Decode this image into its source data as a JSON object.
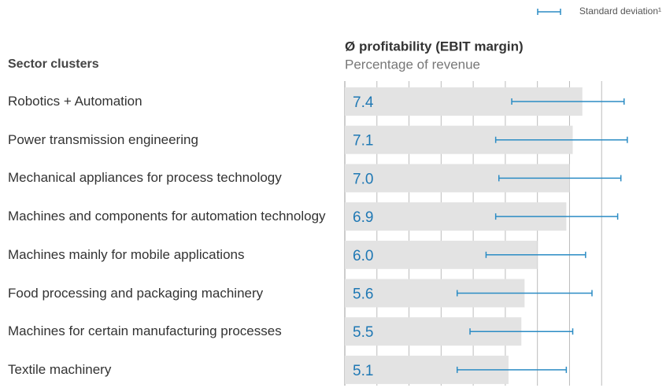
{
  "chart_data": {
    "type": "bar",
    "orientation": "horizontal",
    "title": "Ø profitability (EBIT margin)",
    "subtitle": "Percentage of revenue",
    "category_header": "Sector clusters",
    "legend": {
      "label": "Standard deviation¹",
      "position": "top-right"
    },
    "categories": [
      "Robotics + Automation",
      "Power transmission engineering",
      "Mechanical appliances for process technology",
      "Machines and components for automation technology",
      "Machines mainly for mobile applications",
      "Food processing and packaging machinery",
      "Machines for certain manufacturing processes",
      "Textile machinery"
    ],
    "values": [
      7.4,
      7.1,
      7.0,
      6.9,
      6.0,
      5.6,
      5.5,
      5.1
    ],
    "value_labels": [
      "7.4",
      "7.1",
      "7.0",
      "6.9",
      "6.0",
      "5.6",
      "5.5",
      "5.1"
    ],
    "error_low": [
      5.2,
      4.7,
      4.8,
      4.7,
      4.4,
      3.5,
      3.9,
      3.5
    ],
    "error_high": [
      8.7,
      8.8,
      8.6,
      8.5,
      7.5,
      7.7,
      7.1,
      6.9
    ],
    "color": "#e3e3e3",
    "label_color": "#1f78b4",
    "error_color": "#2b8cc4",
    "xlim": [
      0,
      9
    ],
    "xticks": [
      0,
      1,
      2,
      3,
      4,
      5,
      6,
      7,
      8
    ],
    "grid": true
  }
}
